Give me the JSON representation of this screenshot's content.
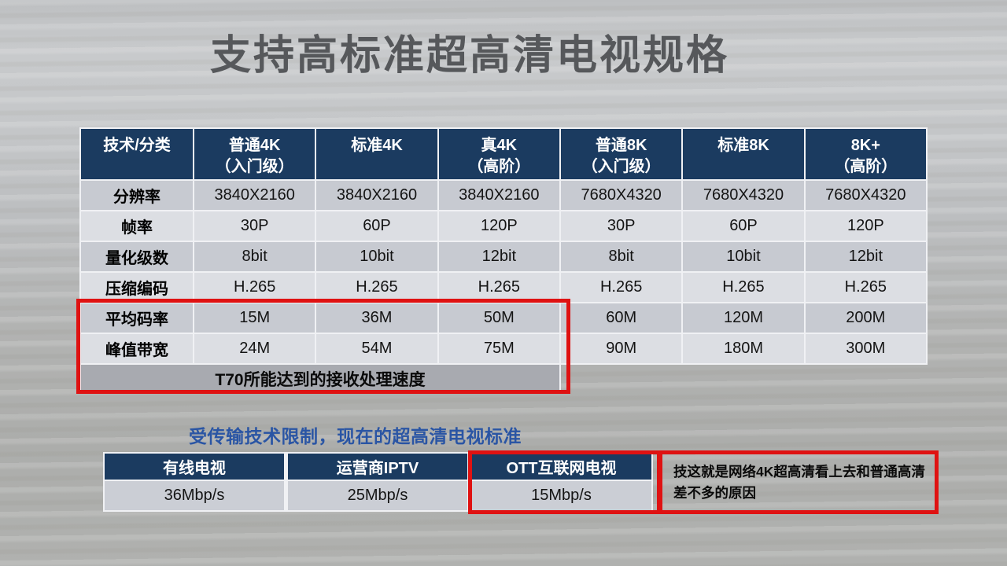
{
  "slide": {
    "title": "支持高标准超高清电视规格",
    "subtitle": "受传输技术限制，现在的超高清电视标准",
    "colors": {
      "header_navy": "#1b3b60",
      "highlight_red": "#df1212",
      "subtitle_blue": "#2a55a4",
      "title_gray": "#56585b",
      "row_dark": "#c7cad1",
      "row_light": "#dcdee3",
      "caption_band": "#a8aab0"
    }
  },
  "spec_table": {
    "header": [
      {
        "l1": "技术/分类",
        "l2": ""
      },
      {
        "l1": "普通4K",
        "l2": "（入门级）"
      },
      {
        "l1": "标准4K",
        "l2": ""
      },
      {
        "l1": "真4K",
        "l2": "（高阶）"
      },
      {
        "l1": "普通8K",
        "l2": "（入门级）"
      },
      {
        "l1": "标准8K",
        "l2": ""
      },
      {
        "l1": "8K+",
        "l2": "（高阶）"
      }
    ],
    "rows": [
      {
        "label": "分辨率",
        "cells": [
          "3840X2160",
          "3840X2160",
          "3840X2160",
          "7680X4320",
          "7680X4320",
          "7680X4320"
        ]
      },
      {
        "label": "帧率",
        "cells": [
          "30P",
          "60P",
          "120P",
          "30P",
          "60P",
          "120P"
        ]
      },
      {
        "label": "量化级数",
        "cells": [
          "8bit",
          "10bit",
          "12bit",
          "8bit",
          "10bit",
          "12bit"
        ]
      },
      {
        "label": "压缩编码",
        "cells": [
          "H.265",
          "H.265",
          "H.265",
          "H.265",
          "H.265",
          "H.265"
        ]
      },
      {
        "label": "平均码率",
        "cells": [
          "15M",
          "36M",
          "50M",
          "60M",
          "120M",
          "200M"
        ]
      },
      {
        "label": "峰值带宽",
        "cells": [
          "24M",
          "54M",
          "75M",
          "90M",
          "180M",
          "300M"
        ]
      }
    ],
    "caption": "T70所能达到的接收处理速度"
  },
  "bandwidth_table": {
    "header": [
      "有线电视",
      "运营商IPTV",
      "OTT互联网电视"
    ],
    "values": [
      "36Mbp/s",
      "25Mbp/s",
      "15Mbp/s"
    ]
  },
  "annotation": "技这就是网络4K超高清看上去和普通高清差不多的原因"
}
